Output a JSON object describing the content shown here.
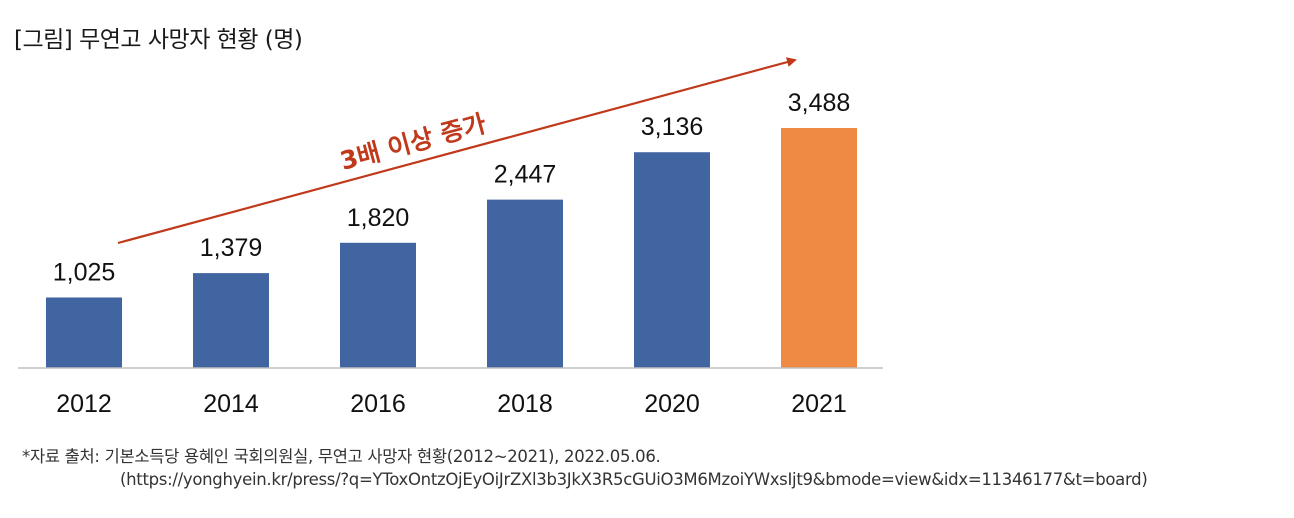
{
  "title": "[그림] 무연고 사망자 현황 (명)",
  "chart_data": {
    "type": "bar",
    "title": "[그림] 무연고 사망자 현황 (명)",
    "categories": [
      "2012",
      "2014",
      "2016",
      "2018",
      "2020",
      "2021"
    ],
    "values": [
      1025,
      1379,
      1820,
      2447,
      3136,
      3488
    ],
    "value_labels": [
      "1,025",
      "1,379",
      "1,820",
      "2,447",
      "3,136",
      "3,488"
    ],
    "ylim": [
      0,
      3488
    ],
    "grid": false,
    "legend": "none",
    "annotation": "3배 이상 증가",
    "colors": {
      "default_bar": "#4065a0",
      "highlight_bar": "#ef8a45",
      "annotation": "#c0391b",
      "axis": "#bfbfbf"
    },
    "highlight_index": 5
  },
  "source_line": "*자료 출처: 기본소득당 용혜인 국회의원실, 무연고 사망자 현황(2012~2021), 2022.05.06.",
  "source_url": "(https://yonghyein.kr/press/?q=YToxOntzOjEyOiJrZXl3b3JkX3R5cGUiO3M6MzoiYWxsIjt9&bmode=view&idx=11346177&t=board)"
}
